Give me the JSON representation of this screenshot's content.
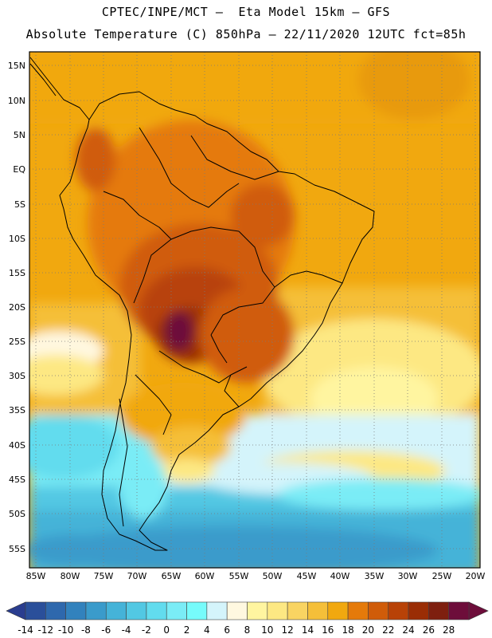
{
  "title_line1": "CPTEC/INPE/MCT –  Eta Model 15km – GFS",
  "title_line2": "Absolute Temperature (C) 850hPa – 22/11/2020 12UTC fct=85h",
  "lat_labels": [
    "15N",
    "10N",
    "5N",
    "EQ",
    "5S",
    "10S",
    "15S",
    "20S",
    "25S",
    "30S",
    "35S",
    "40S",
    "45S",
    "50S",
    "55S"
  ],
  "lon_labels": [
    "85W",
    "80W",
    "75W",
    "70W",
    "65W",
    "60W",
    "55W",
    "50W",
    "45W",
    "40W",
    "35W",
    "30W",
    "25W",
    "20W"
  ],
  "colorbar": {
    "labels": [
      "-14",
      "-12",
      "-10",
      "-8",
      "-6",
      "-4",
      "-2",
      "0",
      "2",
      "4",
      "6",
      "8",
      "10",
      "12",
      "14",
      "16",
      "18",
      "20",
      "22",
      "24",
      "26",
      "28"
    ],
    "colors": [
      "#2a4f9a",
      "#2e68ad",
      "#3282bd",
      "#3a9bcb",
      "#45b3d8",
      "#52c8e3",
      "#62dcee",
      "#7aecf6",
      "#76fbfb",
      "#d4f4fb",
      "#fff8e0",
      "#fff5a0",
      "#fde883",
      "#f9d462",
      "#f5bf39",
      "#f1a80f",
      "#e57a0a",
      "#d05c09",
      "#b84207",
      "#9a2d05",
      "#7e1f0f",
      "#6d0d3a"
    ],
    "left_arrow": "#2a3d8f",
    "right_arrow": "#6d0d3a"
  }
}
